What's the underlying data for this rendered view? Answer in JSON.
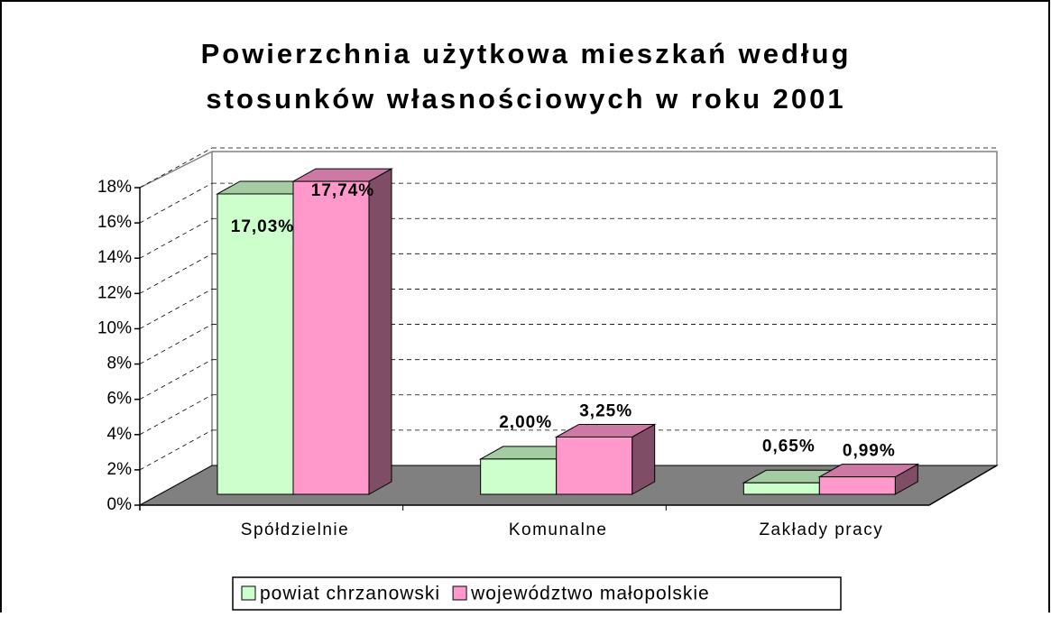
{
  "chart_data": {
    "type": "bar3d",
    "title": [
      "Powierzchnia użytkowa mieszkań według",
      "stosunków własnościowych w roku 2001"
    ],
    "categories": [
      "Spółdzielnie",
      "Komunalne",
      "Zakłady pracy"
    ],
    "series": [
      {
        "name": "powiat chrzanowski",
        "color": "#ccffcc",
        "values": [
          17.03,
          2.0,
          0.65
        ],
        "value_labels": [
          "17,03%",
          "2,00%",
          "0,65%"
        ]
      },
      {
        "name": "województwo małopolskie",
        "color": "#ff99cc",
        "values": [
          17.74,
          3.25,
          0.99
        ],
        "value_labels": [
          "17,74%",
          "3,25%",
          "0,99%"
        ]
      }
    ],
    "ylim": [
      0,
      18
    ],
    "yticks": [
      {
        "value": 0,
        "label": "0%"
      },
      {
        "value": 2,
        "label": "2%"
      },
      {
        "value": 4,
        "label": "4%"
      },
      {
        "value": 6,
        "label": "6%"
      },
      {
        "value": 8,
        "label": "8%"
      },
      {
        "value": 10,
        "label": "10%"
      },
      {
        "value": 12,
        "label": "12%"
      },
      {
        "value": 14,
        "label": "14%"
      },
      {
        "value": 16,
        "label": "16%"
      },
      {
        "value": 18,
        "label": "18%"
      }
    ],
    "grid": true,
    "legend": "bottom"
  }
}
